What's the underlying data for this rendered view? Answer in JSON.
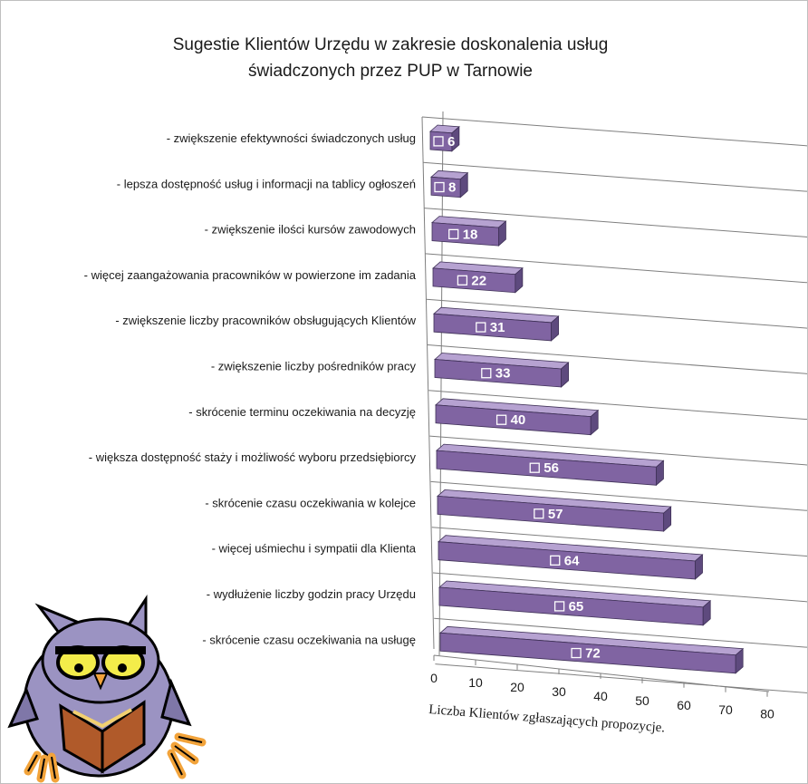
{
  "chart_data": {
    "type": "bar",
    "orientation": "horizontal",
    "style": "3d",
    "title_lines": [
      "Sugestie Klientów Urzędu w zakresie doskonalenia  usług",
      "świadczonych przez  PUP w Tarnowie"
    ],
    "categories": [
      "- zwiększenie efektywności świadczonych usług",
      "- lepsza dostępność usług i informacji na tablicy ogłoszeń",
      "- zwiększenie ilości kursów zawodowych",
      "- więcej zaangażowania pracowników w powierzone im zadania",
      "- zwiększenie liczby pracowników obsługujących Klientów",
      "- zwiększenie liczby pośredników pracy",
      "- skrócenie terminu  oczekiwania na decyzję",
      "- większa dostępność staży i możliwość wyboru przedsiębiorcy",
      "- skrócenie czasu oczekiwania w kolejce",
      "- więcej uśmiechu i sympatii dla Klienta",
      "- wydłużenie liczby godzin pracy Urzędu",
      "- skrócenie czasu oczekiwania na usługę"
    ],
    "values": [
      6,
      8,
      18,
      22,
      31,
      33,
      40,
      56,
      57,
      64,
      65,
      72
    ],
    "value_labels": [
      "6",
      "8",
      "18",
      "22",
      "31",
      "33",
      "40",
      "56",
      "57",
      "64",
      "65",
      "72"
    ],
    "x_ticks": [
      "0",
      "10",
      "20",
      "30",
      "40",
      "50",
      "60",
      "70",
      "80"
    ],
    "xlim": [
      0,
      80
    ],
    "xlabel": "Liczba Klientów zgłaszających propozycje.",
    "ylabel": "",
    "grid": true,
    "legend": "none",
    "colors": {
      "bar_front": "#8064a2",
      "bar_top": "#b6a2d1",
      "bar_side": "#5e4a7e",
      "gridline": "#7f7f7f",
      "label_text": "#ffffff"
    }
  },
  "decoration": {
    "icon": "owl-reading-book-clipart"
  }
}
